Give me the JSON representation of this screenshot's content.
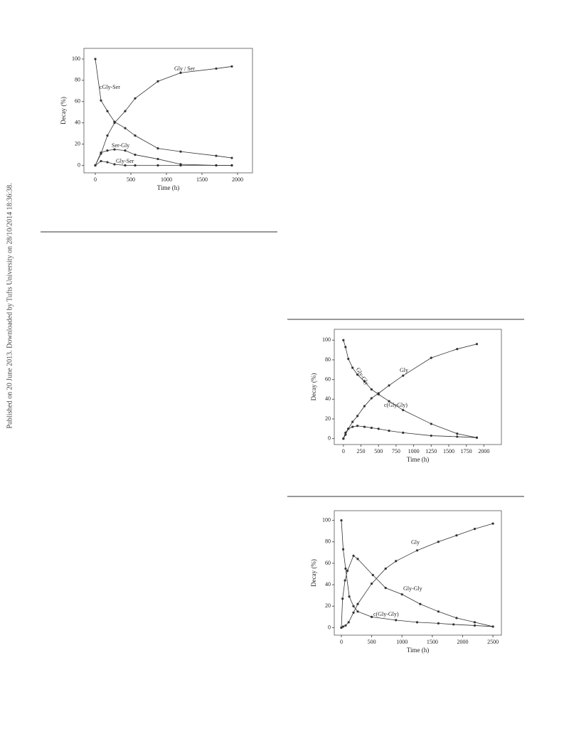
{
  "side_note": "Published on 20 June 2013. Downloaded by Tufts University on 28/10/2014 18:36:38.",
  "chart_data": [
    {
      "type": "line",
      "x_label": "Time (h)",
      "y_label": "Decay (%)",
      "xlim": [
        -160,
        2210
      ],
      "ylim": [
        -7,
        110
      ],
      "xticks": [
        0,
        500,
        1000,
        1500,
        2000
      ],
      "yticks": [
        0,
        20,
        40,
        60,
        80,
        100
      ],
      "series": [
        {
          "name": "cGly-Ser",
          "color": "#333333",
          "x": [
            0,
            80,
            170,
            270,
            420,
            560,
            880,
            1200,
            1700,
            1920
          ],
          "values": [
            100,
            61,
            51,
            41,
            35,
            28,
            16,
            13,
            9,
            7
          ]
        },
        {
          "name": "Gly / Ser",
          "color": "#333333",
          "x": [
            0,
            80,
            170,
            270,
            420,
            560,
            880,
            1200,
            1700,
            1920
          ],
          "values": [
            0,
            11,
            28,
            40,
            51,
            63,
            79,
            87,
            91,
            93
          ]
        },
        {
          "name": "Ser-Gly",
          "color": "#333333",
          "x": [
            0,
            80,
            170,
            270,
            420,
            560,
            880,
            1200,
            1700,
            1920
          ],
          "values": [
            0,
            12,
            14,
            15,
            14,
            10,
            6,
            1,
            0,
            0
          ]
        },
        {
          "name": "Gly-Ser",
          "color": "#333333",
          "x": [
            0,
            80,
            170,
            270,
            420,
            560,
            880,
            1200,
            1700,
            1920
          ],
          "values": [
            0,
            4,
            3,
            1,
            0,
            0,
            0,
            0,
            0,
            0
          ]
        }
      ]
    },
    {
      "type": "line",
      "x_label": "Time (h)",
      "y_label": "Decay (%)",
      "xlim": [
        -130,
        2250
      ],
      "ylim": [
        -6,
        111
      ],
      "xticks": [
        0,
        250,
        500,
        750,
        1000,
        1250,
        1500,
        1750,
        2000
      ],
      "yticks": [
        0,
        20,
        40,
        60,
        80,
        100
      ],
      "series": [
        {
          "name": "Gly-Gly",
          "color": "#333333",
          "x": [
            0,
            30,
            70,
            130,
            200,
            300,
            400,
            500,
            650,
            850,
            1250,
            1620,
            1900
          ],
          "values": [
            100,
            93,
            81,
            72,
            65,
            58,
            50,
            45,
            38,
            29,
            15,
            5,
            1
          ]
        },
        {
          "name": "Gly",
          "color": "#333333",
          "x": [
            0,
            30,
            70,
            130,
            200,
            300,
            400,
            500,
            650,
            850,
            1250,
            1620,
            1900
          ],
          "values": [
            0,
            4,
            10,
            17,
            23,
            33,
            41,
            46,
            54,
            64,
            82,
            91,
            96
          ]
        },
        {
          "name": "c(GlyGly)",
          "color": "#333333",
          "x": [
            0,
            30,
            70,
            130,
            200,
            300,
            400,
            500,
            650,
            850,
            1250,
            1620,
            1900
          ],
          "values": [
            0,
            6,
            10,
            12,
            13,
            12,
            11,
            10,
            8,
            6,
            3,
            2,
            1
          ]
        }
      ]
    },
    {
      "type": "line",
      "x_label": "Time (h)",
      "y_label": "Decay (%)",
      "xlim": [
        -117,
        2640
      ],
      "ylim": [
        -7,
        109
      ],
      "xticks": [
        0,
        500,
        1000,
        1500,
        2000,
        2500
      ],
      "yticks": [
        0,
        20,
        40,
        60,
        80,
        100
      ],
      "series": [
        {
          "name": "c(Gly-Gly)",
          "color": "#333333",
          "x": [
            0,
            30,
            70,
            130,
            200,
            270,
            500,
            900,
            1250,
            1600,
            1850,
            2200,
            2500
          ],
          "values": [
            100,
            73,
            55,
            29,
            20,
            15,
            10,
            7,
            5,
            4,
            3,
            2,
            1
          ]
        },
        {
          "name": "Gly-Gly",
          "color": "#333333",
          "x": [
            0,
            20,
            60,
            100,
            200,
            270,
            520,
            730,
            1000,
            1300,
            1600,
            1900,
            2200,
            2500
          ],
          "values": [
            0,
            27,
            44,
            53,
            67,
            64,
            49,
            37,
            31,
            22,
            15,
            9,
            5,
            1
          ]
        },
        {
          "name": "Gly",
          "color": "#333333",
          "x": [
            0,
            30,
            70,
            120,
            200,
            270,
            500,
            730,
            900,
            1250,
            1600,
            1900,
            2200,
            2500
          ],
          "values": [
            0,
            1,
            2,
            5,
            14,
            22,
            41,
            55,
            62,
            72,
            80,
            86,
            92,
            97
          ]
        }
      ]
    }
  ]
}
